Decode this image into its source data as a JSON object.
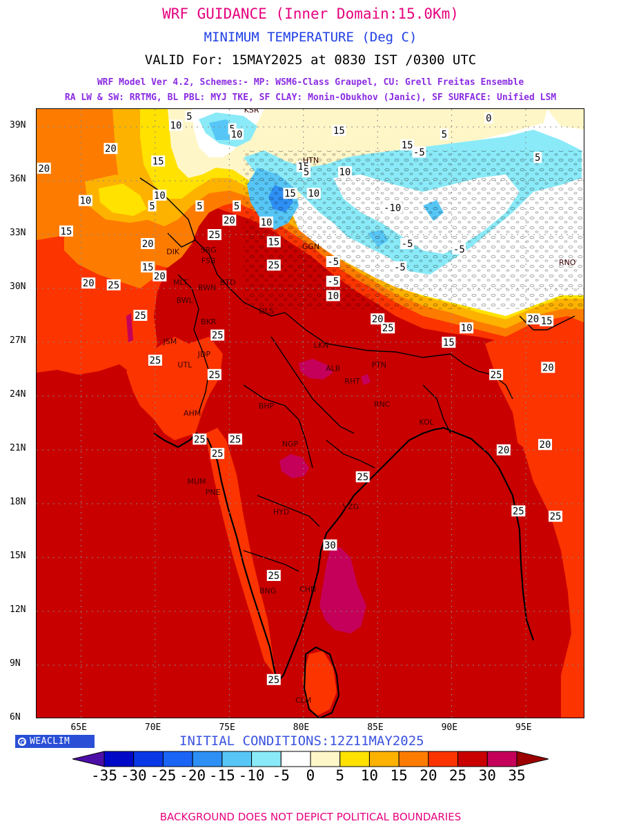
{
  "header": {
    "line1": "WRF GUIDANCE (Inner Domain:15.0Km)",
    "line2": "MINIMUM TEMPERATURE (Deg C)",
    "line3": "VALID For: 15MAY2025 at 0830 IST /0300 UTC",
    "line4": "WRF Model Ver 4.2, Schemes:- MP: WSM6-Class Graupel, CU: Grell Freitas Ensemble",
    "line5": "RA LW & SW: RRTMG, BL PBL: MYJ TKE, SF CLAY: Monin-Obukhov (Janic), SF SURFACE: Unified LSM"
  },
  "colors": {
    "line1": "#e6007e",
    "line2": "#1f3fe6",
    "line4": "#8a2be2",
    "init": "#3a52e0",
    "footer": "#e6007e",
    "badge": "#2a4fd6"
  },
  "map": {
    "lon_range": [
      62,
      99
    ],
    "lat_range": [
      6,
      40
    ],
    "lon_ticks": [
      "65E",
      "70E",
      "75E",
      "80E",
      "85E",
      "90E",
      "95E"
    ],
    "lon_tick_values": [
      65,
      70,
      75,
      80,
      85,
      90,
      95
    ],
    "lat_ticks": [
      "39N",
      "36N",
      "33N",
      "30N",
      "27N",
      "24N",
      "21N",
      "18N",
      "15N",
      "12N",
      "9N",
      "6N"
    ],
    "lat_tick_values": [
      39,
      36,
      33,
      30,
      27,
      24,
      21,
      18,
      15,
      12,
      9,
      6
    ],
    "contour_labels": [
      {
        "text": "20",
        "lon": 62.5,
        "lat": 36.7
      },
      {
        "text": "20",
        "lon": 67.0,
        "lat": 37.8
      },
      {
        "text": "15",
        "lon": 64.0,
        "lat": 33.2
      },
      {
        "text": "20",
        "lon": 65.5,
        "lat": 30.3
      },
      {
        "text": "25",
        "lon": 67.2,
        "lat": 30.2
      },
      {
        "text": "20",
        "lon": 69.5,
        "lat": 32.5
      },
      {
        "text": "10",
        "lon": 65.3,
        "lat": 34.9
      },
      {
        "text": "5",
        "lon": 69.8,
        "lat": 34.6
      },
      {
        "text": "10",
        "lon": 70.3,
        "lat": 35.2
      },
      {
        "text": "15",
        "lon": 70.2,
        "lat": 37.1
      },
      {
        "text": "10",
        "lon": 71.4,
        "lat": 39.1
      },
      {
        "text": "5",
        "lon": 72.3,
        "lat": 39.6
      },
      {
        "text": "5",
        "lon": 75.2,
        "lat": 38.9
      },
      {
        "text": "10",
        "lon": 75.5,
        "lat": 38.6
      },
      {
        "text": "15",
        "lon": 82.4,
        "lat": 38.8
      },
      {
        "text": "15",
        "lon": 87.0,
        "lat": 38.0
      },
      {
        "text": "5",
        "lon": 73.0,
        "lat": 34.6
      },
      {
        "text": "25",
        "lon": 74.0,
        "lat": 33.0
      },
      {
        "text": "20",
        "lon": 75.0,
        "lat": 33.8
      },
      {
        "text": "5",
        "lon": 75.5,
        "lat": 34.6
      },
      {
        "text": "15",
        "lon": 79.1,
        "lat": 35.3
      },
      {
        "text": "10",
        "lon": 80.7,
        "lat": 35.3
      },
      {
        "text": "-10",
        "lon": 86.0,
        "lat": 34.5
      },
      {
        "text": "15",
        "lon": 80.0,
        "lat": 36.8
      },
      {
        "text": "10",
        "lon": 82.8,
        "lat": 36.5
      },
      {
        "text": "5",
        "lon": 80.2,
        "lat": 36.5
      },
      {
        "text": "-5",
        "lon": 86.5,
        "lat": 31.2
      },
      {
        "text": "5",
        "lon": 89.5,
        "lat": 38.6
      },
      {
        "text": "0",
        "lon": 92.5,
        "lat": 39.5
      },
      {
        "text": "-5",
        "lon": 87.8,
        "lat": 37.6
      },
      {
        "text": "5",
        "lon": 95.8,
        "lat": 37.3
      },
      {
        "text": "-5",
        "lon": 90.5,
        "lat": 32.2
      },
      {
        "text": "-5",
        "lon": 87.0,
        "lat": 32.5
      },
      {
        "text": "10",
        "lon": 77.5,
        "lat": 33.7
      },
      {
        "text": "15",
        "lon": 78.0,
        "lat": 32.6
      },
      {
        "text": "25",
        "lon": 78.0,
        "lat": 31.3
      },
      {
        "text": "10",
        "lon": 82.0,
        "lat": 29.6
      },
      {
        "text": "-5",
        "lon": 82.0,
        "lat": 30.4
      },
      {
        "text": "-5",
        "lon": 82.0,
        "lat": 31.5
      },
      {
        "text": "15",
        "lon": 69.5,
        "lat": 31.2
      },
      {
        "text": "20",
        "lon": 70.3,
        "lat": 30.7
      },
      {
        "text": "25",
        "lon": 69.0,
        "lat": 28.5
      },
      {
        "text": "25",
        "lon": 70.0,
        "lat": 26.0
      },
      {
        "text": "25",
        "lon": 74.2,
        "lat": 27.4
      },
      {
        "text": "25",
        "lon": 74.0,
        "lat": 25.2
      },
      {
        "text": "25",
        "lon": 73.0,
        "lat": 21.6
      },
      {
        "text": "25",
        "lon": 75.4,
        "lat": 21.6
      },
      {
        "text": "25",
        "lon": 74.2,
        "lat": 20.8
      },
      {
        "text": "20",
        "lon": 85.0,
        "lat": 28.3
      },
      {
        "text": "25",
        "lon": 85.7,
        "lat": 27.8
      },
      {
        "text": "15",
        "lon": 89.8,
        "lat": 27.0
      },
      {
        "text": "10",
        "lon": 91.0,
        "lat": 27.8
      },
      {
        "text": "20",
        "lon": 95.5,
        "lat": 28.3
      },
      {
        "text": "15",
        "lon": 96.4,
        "lat": 28.2
      },
      {
        "text": "25",
        "lon": 93.0,
        "lat": 25.2
      },
      {
        "text": "20",
        "lon": 96.5,
        "lat": 25.6
      },
      {
        "text": "20",
        "lon": 96.3,
        "lat": 21.3
      },
      {
        "text": "20",
        "lon": 93.5,
        "lat": 21.0
      },
      {
        "text": "25",
        "lon": 94.5,
        "lat": 17.6
      },
      {
        "text": "25",
        "lon": 97.0,
        "lat": 17.3
      },
      {
        "text": "25",
        "lon": 84.0,
        "lat": 19.5
      },
      {
        "text": "30",
        "lon": 81.8,
        "lat": 15.7
      },
      {
        "text": "25",
        "lon": 78.0,
        "lat": 14.0
      },
      {
        "text": "25",
        "lon": 78.0,
        "lat": 8.2
      }
    ],
    "city_labels": [
      {
        "text": "KSR",
        "lon": 76.5,
        "lat": 39.8
      },
      {
        "text": "HTN",
        "lon": 80.5,
        "lat": 37.0
      },
      {
        "text": "GGN",
        "lon": 80.5,
        "lat": 32.2
      },
      {
        "text": "DIK",
        "lon": 71.2,
        "lat": 31.9
      },
      {
        "text": "SRG",
        "lon": 73.6,
        "lat": 32.0
      },
      {
        "text": "FSB",
        "lon": 73.6,
        "lat": 31.4
      },
      {
        "text": "MLT",
        "lon": 71.7,
        "lat": 30.2
      },
      {
        "text": "BWN",
        "lon": 73.5,
        "lat": 29.9
      },
      {
        "text": "BTD",
        "lon": 74.9,
        "lat": 30.2
      },
      {
        "text": "BWL",
        "lon": 72.0,
        "lat": 29.2
      },
      {
        "text": "DLS",
        "lon": 77.5,
        "lat": 28.6
      },
      {
        "text": "BKR",
        "lon": 73.6,
        "lat": 28.0
      },
      {
        "text": "JSM",
        "lon": 71.0,
        "lat": 26.9
      },
      {
        "text": "JDP",
        "lon": 73.3,
        "lat": 26.2
      },
      {
        "text": "UTL",
        "lon": 72.0,
        "lat": 25.6
      },
      {
        "text": "LKN",
        "lon": 81.2,
        "lat": 26.7
      },
      {
        "text": "ALB",
        "lon": 82.0,
        "lat": 25.4
      },
      {
        "text": "PTN",
        "lon": 85.1,
        "lat": 25.6
      },
      {
        "text": "RHT",
        "lon": 83.3,
        "lat": 24.7
      },
      {
        "text": "BHP",
        "lon": 77.5,
        "lat": 23.3
      },
      {
        "text": "AHM",
        "lon": 72.5,
        "lat": 22.9
      },
      {
        "text": "RNC",
        "lon": 85.3,
        "lat": 23.4
      },
      {
        "text": "KOL",
        "lon": 88.3,
        "lat": 22.4
      },
      {
        "text": "NGP",
        "lon": 79.1,
        "lat": 21.2
      },
      {
        "text": "MUM",
        "lon": 72.8,
        "lat": 19.1
      },
      {
        "text": "PNE",
        "lon": 73.9,
        "lat": 18.5
      },
      {
        "text": "HYD",
        "lon": 78.5,
        "lat": 17.4
      },
      {
        "text": "VZG",
        "lon": 83.2,
        "lat": 17.7
      },
      {
        "text": "CHN",
        "lon": 80.3,
        "lat": 13.1
      },
      {
        "text": "BNG",
        "lon": 77.6,
        "lat": 13.0
      },
      {
        "text": "CLM",
        "lon": 80.0,
        "lat": 6.9
      },
      {
        "text": "RNO",
        "lon": 97.8,
        "lat": 31.3
      }
    ]
  },
  "badge": {
    "text": "WEACLIM"
  },
  "initial_conditions": "INITIAL CONDITIONS:12Z11MAY2025",
  "colorbar": {
    "labels": [
      "-35",
      "-30",
      "-25",
      "-20",
      "-15",
      "-10",
      "-5",
      "0",
      "5",
      "10",
      "15",
      "20",
      "25",
      "30",
      "35"
    ],
    "colors": [
      "#4b0fa8",
      "#0008c8",
      "#0a38e6",
      "#1a64f6",
      "#2e8ff4",
      "#56c6f6",
      "#8aeaf8",
      "#ffffff",
      "#fff6c8",
      "#ffe200",
      "#fdb200",
      "#fd7c00",
      "#fb3400",
      "#c90000",
      "#c5005a",
      "#9c0000"
    ]
  },
  "footer": "BACKGROUND DOES NOT DEPICT POLITICAL BOUNDARIES"
}
